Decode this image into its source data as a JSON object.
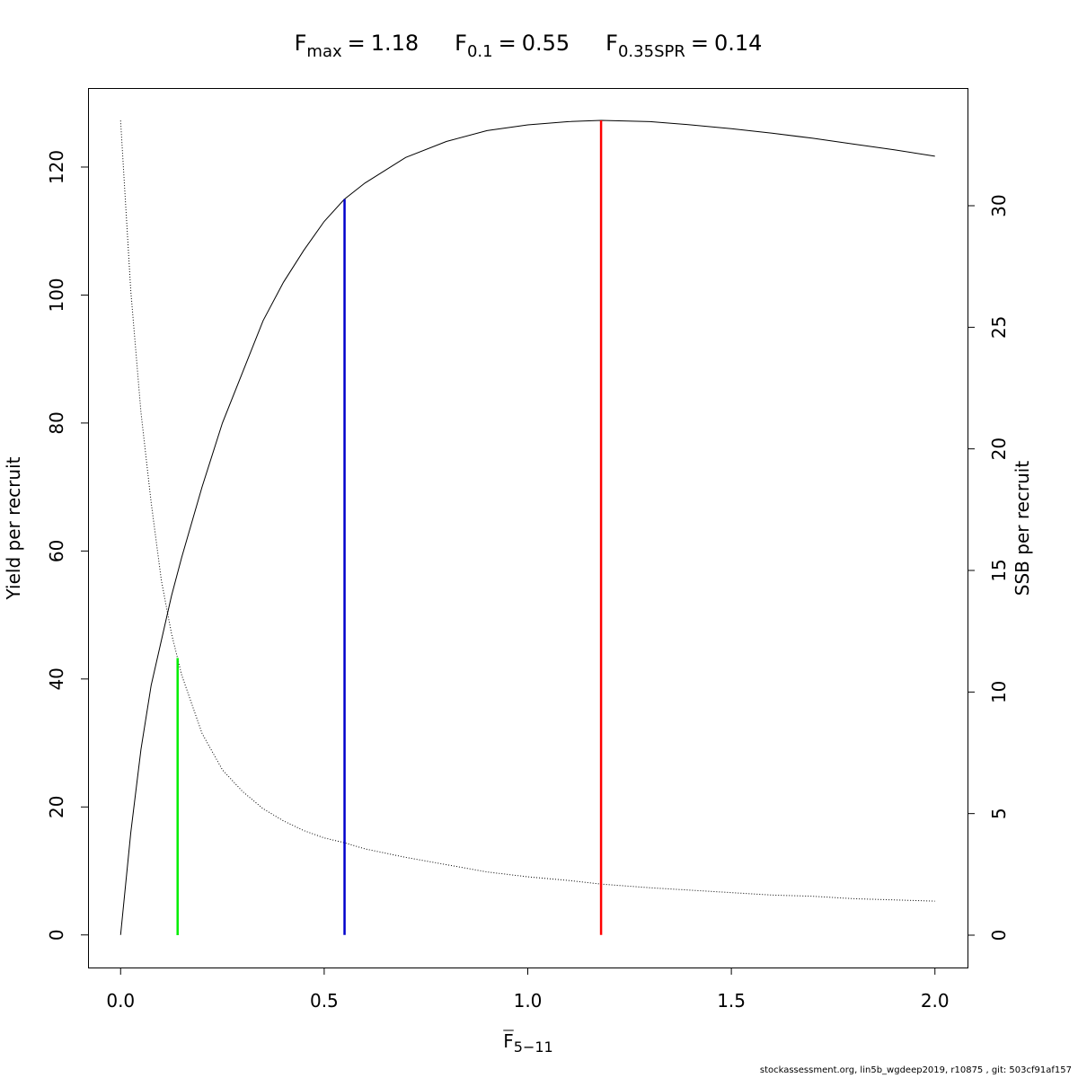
{
  "chart_data": {
    "type": "line",
    "title": [
      {
        "symbol": "F",
        "subscript": "max",
        "operator": "=",
        "value": 1.18
      },
      {
        "symbol": "F",
        "subscript": "0.1",
        "operator": "=",
        "value": 0.55
      },
      {
        "symbol": "F",
        "subscript": "0.35SPR",
        "operator": "=",
        "value": 0.14
      }
    ],
    "xlabel": {
      "symbol": "F",
      "subscript": "5−11"
    },
    "ylabel": "Yield per recruit",
    "y2label": "SSB per recruit",
    "footnote": "stockassessment.org, lin5b_wgdeep2019, r10875 , git: 503cf91af157",
    "x": [
      0,
      0.025,
      0.05,
      0.075,
      0.1,
      0.125,
      0.15,
      0.2,
      0.25,
      0.3,
      0.35,
      0.4,
      0.45,
      0.5,
      0.55,
      0.6,
      0.7,
      0.8,
      0.9,
      1.0,
      1.1,
      1.18,
      1.3,
      1.4,
      1.5,
      1.6,
      1.7,
      1.8,
      1.9,
      2.0
    ],
    "series": [
      {
        "color": "#000000",
        "dash": "solid",
        "axis": "y",
        "values": [
          0,
          16,
          29,
          39,
          46,
          53,
          59,
          70,
          80,
          88,
          96,
          102,
          107,
          111.5,
          115,
          117.5,
          121.5,
          124,
          125.7,
          126.6,
          127.1,
          127.3,
          127.1,
          126.6,
          126,
          125.3,
          124.5,
          123.6,
          122.7,
          121.7
        ]
      },
      {
        "color": "#000000",
        "dash": "dotted",
        "axis": "y2",
        "values": [
          33.5,
          26.5,
          21.5,
          17.8,
          14.6,
          12.4,
          10.7,
          8.3,
          6.8,
          5.9,
          5.2,
          4.7,
          4.3,
          4.0,
          3.8,
          3.55,
          3.2,
          2.9,
          2.6,
          2.4,
          2.25,
          2.1,
          1.95,
          1.85,
          1.75,
          1.65,
          1.6,
          1.5,
          1.45,
          1.4
        ]
      }
    ],
    "reference_lines": [
      {
        "x": 1.18,
        "top": 127.3,
        "axis": "y",
        "color": "#ff0000"
      },
      {
        "x": 0.55,
        "top": 115,
        "axis": "y",
        "color": "#0000cc"
      },
      {
        "x": 0.14,
        "top": 11.4,
        "axis": "y2",
        "color": "#00ee00"
      }
    ],
    "xlim": [
      -0.08,
      2.08
    ],
    "xticks": [
      {
        "value": 0,
        "label": "0.0"
      },
      {
        "value": 0.5,
        "label": "0.5"
      },
      {
        "value": 1,
        "label": "1.0"
      },
      {
        "value": 1.5,
        "label": "1.5"
      },
      {
        "value": 2,
        "label": "2.0"
      }
    ],
    "ylim": [
      -5.09,
      132.35
    ],
    "yticks": [
      0,
      20,
      40,
      60,
      80,
      100,
      120
    ],
    "y2lim": [
      -1.33,
      34.84
    ],
    "y2ticks": [
      0,
      5,
      10,
      15,
      20,
      25,
      30
    ],
    "grid": false
  }
}
